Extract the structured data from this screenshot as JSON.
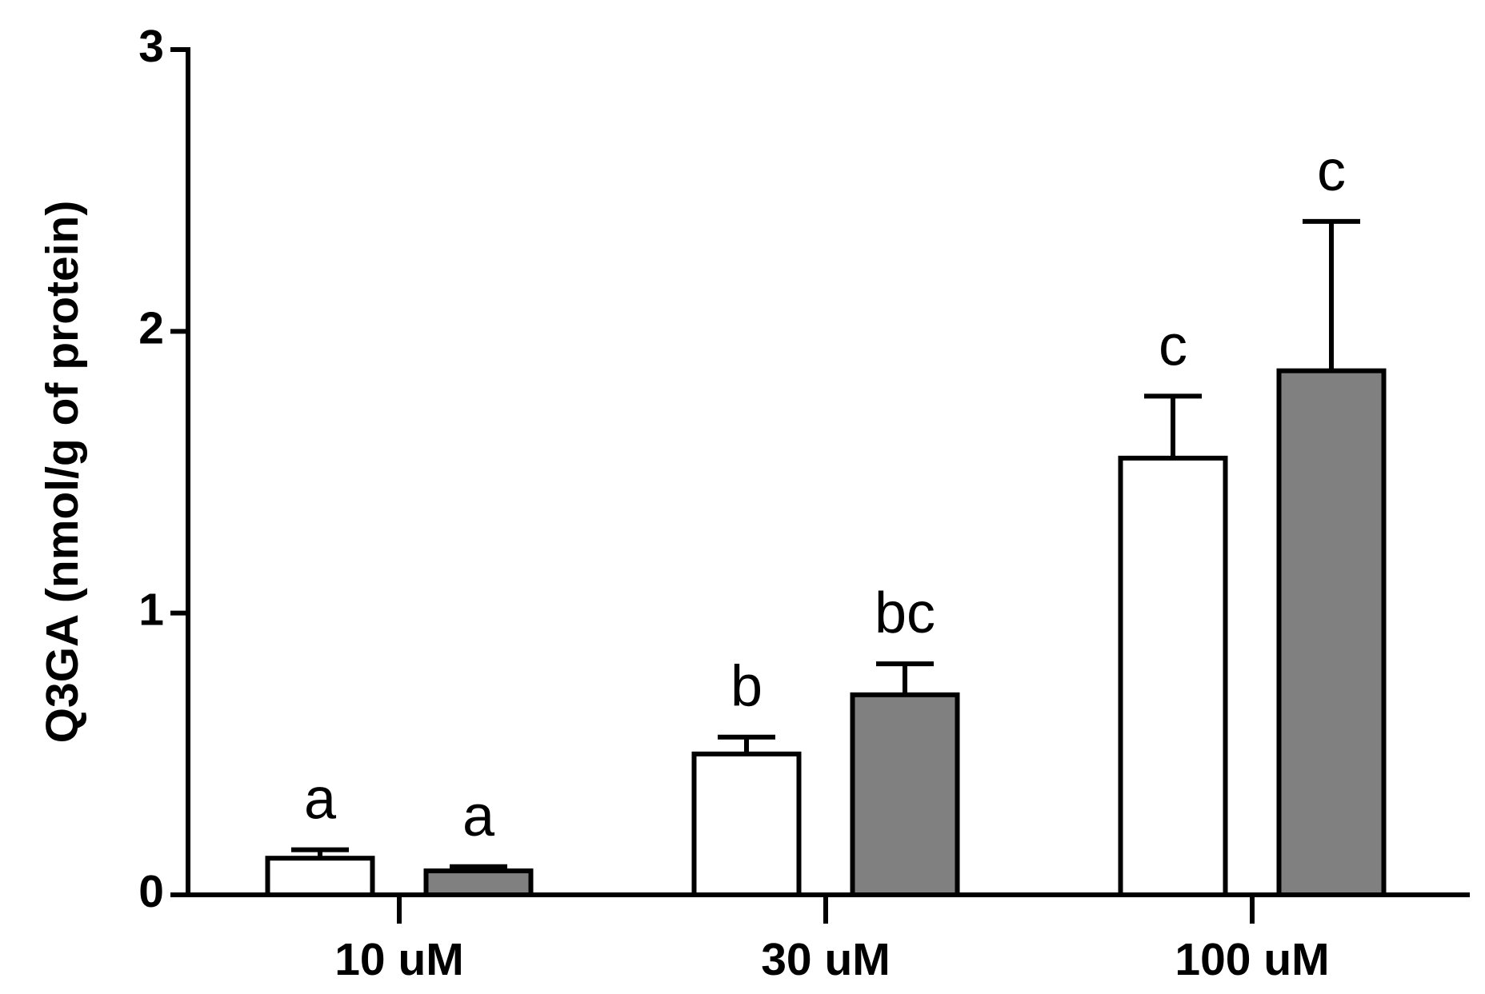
{
  "chart_data": {
    "type": "bar",
    "ylabel": "Q3GA (nmol/g of protein)",
    "categories": [
      "10 uM",
      "30 uM",
      "100 uM"
    ],
    "series": [
      {
        "color": "#ffffff",
        "values": [
          0.13,
          0.5,
          1.55
        ],
        "errors": [
          0.03,
          0.06,
          0.22
        ],
        "labels": [
          "a",
          "b",
          "c"
        ]
      },
      {
        "color": "#808080",
        "values": [
          0.085,
          0.71,
          1.86
        ],
        "errors": [
          0.015,
          0.11,
          0.53
        ],
        "labels": [
          "a",
          "bc",
          "c"
        ]
      }
    ],
    "ylim": [
      0,
      3
    ],
    "yticks": [
      0,
      1,
      2,
      3
    ],
    "grid": false
  }
}
